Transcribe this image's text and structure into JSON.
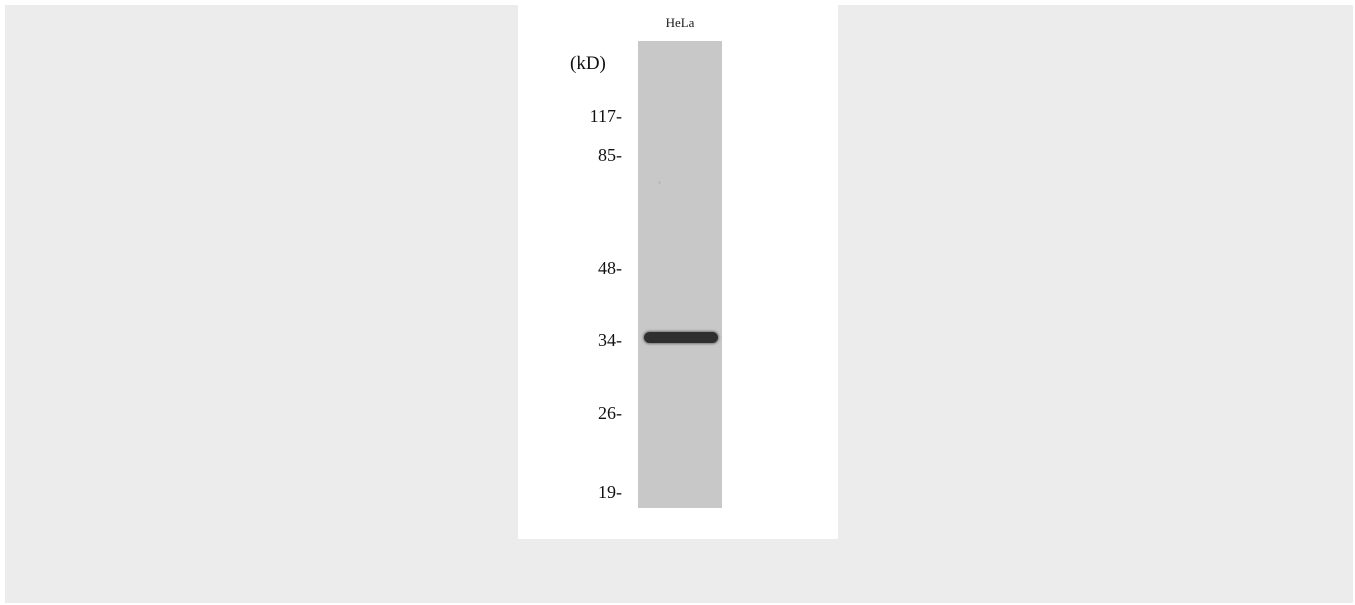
{
  "blot": {
    "lane_label": "HeLa",
    "unit_label": "(kD)",
    "markers": [
      "117-",
      "85-",
      "48-",
      "34-",
      "26-",
      "19-"
    ]
  }
}
